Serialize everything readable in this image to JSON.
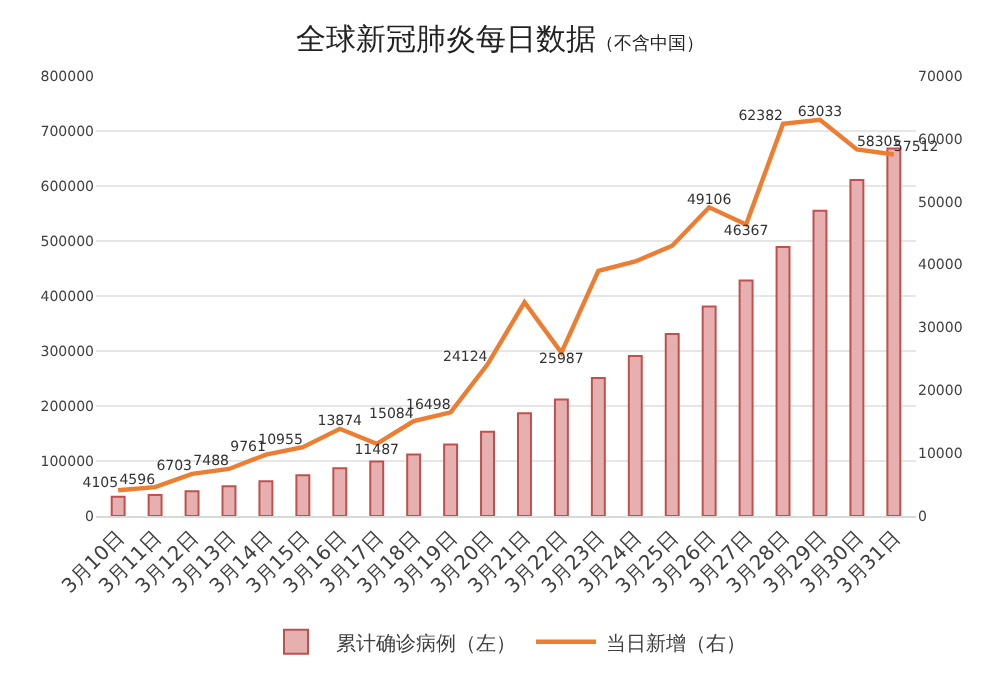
{
  "chart_data": {
    "type": "bar",
    "title": "全球新冠肺炎每日数据",
    "subtitle": "（不含中国）",
    "categories": [
      "3月10日",
      "3月11日",
      "3月12日",
      "3月13日",
      "3月14日",
      "3月15日",
      "3月16日",
      "3月17日",
      "3月18日",
      "3月19日",
      "3月20日",
      "3月21日",
      "3月22日",
      "3月23日",
      "3月24日",
      "3月25日",
      "3月26日",
      "3月27日",
      "3月28日",
      "3月29日",
      "3月30日",
      "3月31日"
    ],
    "series": [
      {
        "name": "累计确诊病例（左）",
        "color": "#e6b0b0",
        "values": [
          35000,
          38000,
          45000,
          54000,
          63000,
          74000,
          87000,
          99000,
          112000,
          130000,
          153000,
          187000,
          212000,
          251000,
          291000,
          331000,
          381000,
          428000,
          489000,
          555000,
          611000,
          668000
        ]
      },
      {
        "name": "当日新增（右）",
        "type": "line",
        "axis": "y2",
        "color": "#ed7d31",
        "values": [
          4105,
          4596,
          6703,
          7488,
          9761,
          10955,
          13874,
          11487,
          15084,
          16498,
          24124,
          34000,
          25987,
          39000,
          40500,
          43000,
          49106,
          46367,
          62382,
          63033,
          58305,
          57512
        ],
        "value_labels": [
          "4105",
          "4596",
          "6703",
          "7488",
          "9761",
          "10955",
          "13874",
          "11487",
          "15084",
          "16498",
          "24124",
          null,
          "25987",
          null,
          null,
          null,
          "49106",
          "46367",
          "62382",
          "63033",
          "58305",
          "57512"
        ]
      }
    ],
    "ylim": [
      0,
      800000
    ],
    "yticks": [
      0,
      100000,
      200000,
      300000,
      400000,
      500000,
      600000,
      700000,
      800000
    ],
    "y2lim": [
      0,
      70000
    ],
    "y2ticks": [
      0,
      10000,
      20000,
      30000,
      40000,
      50000,
      60000,
      70000
    ],
    "grid": "y",
    "legend": "bottom"
  }
}
